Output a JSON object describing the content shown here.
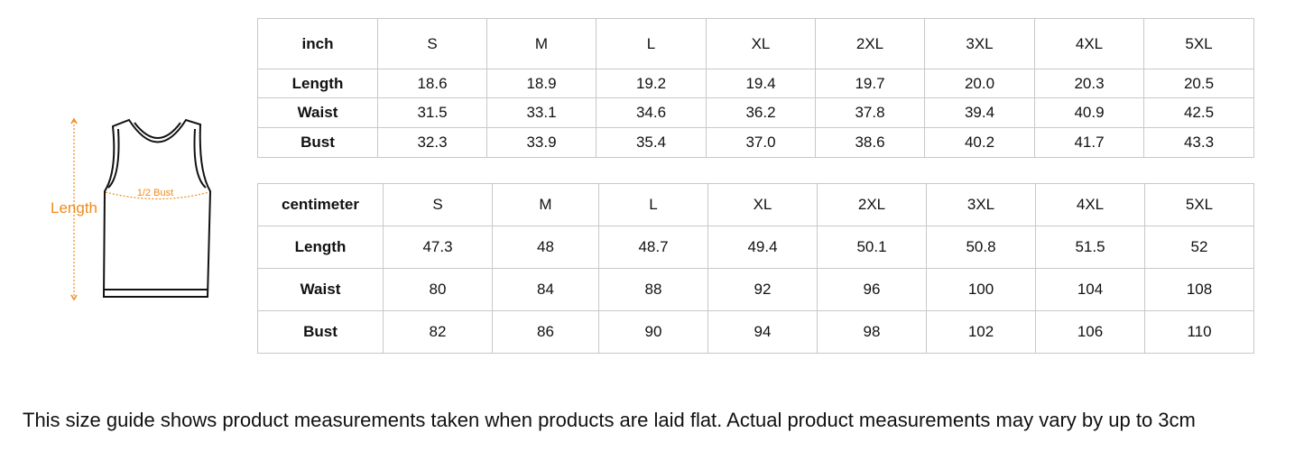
{
  "diagram": {
    "length_label": "Length",
    "bust_label": "1/2 Bust"
  },
  "tables": [
    {
      "header": [
        "inch",
        "S",
        "M",
        "L",
        "XL",
        "2XL",
        "3XL",
        "4XL",
        "5XL"
      ],
      "rows": [
        [
          "Length",
          "18.6",
          "18.9",
          "19.2",
          "19.4",
          "19.7",
          "20.0",
          "20.3",
          "20.5"
        ],
        [
          "Waist",
          "31.5",
          "33.1",
          "34.6",
          "36.2",
          "37.8",
          "39.4",
          "40.9",
          "42.5"
        ],
        [
          "Bust",
          "32.3",
          "33.9",
          "35.4",
          "37.0",
          "38.6",
          "40.2",
          "41.7",
          "43.3"
        ]
      ]
    },
    {
      "header": [
        "centimeter",
        "S",
        "M",
        "L",
        "XL",
        "2XL",
        "3XL",
        "4XL",
        "5XL"
      ],
      "rows": [
        [
          "Length",
          "47.3",
          "48",
          "48.7",
          "49.4",
          "50.1",
          "50.8",
          "51.5",
          "52"
        ],
        [
          "Waist",
          "80",
          "84",
          "88",
          "92",
          "96",
          "100",
          "104",
          "108"
        ],
        [
          "Bust",
          "82",
          "86",
          "90",
          "94",
          "98",
          "102",
          "106",
          "110"
        ]
      ]
    }
  ],
  "footnote": "This size guide shows product measurements taken when products are laid flat. Actual product measurements may vary by up to 3cm"
}
